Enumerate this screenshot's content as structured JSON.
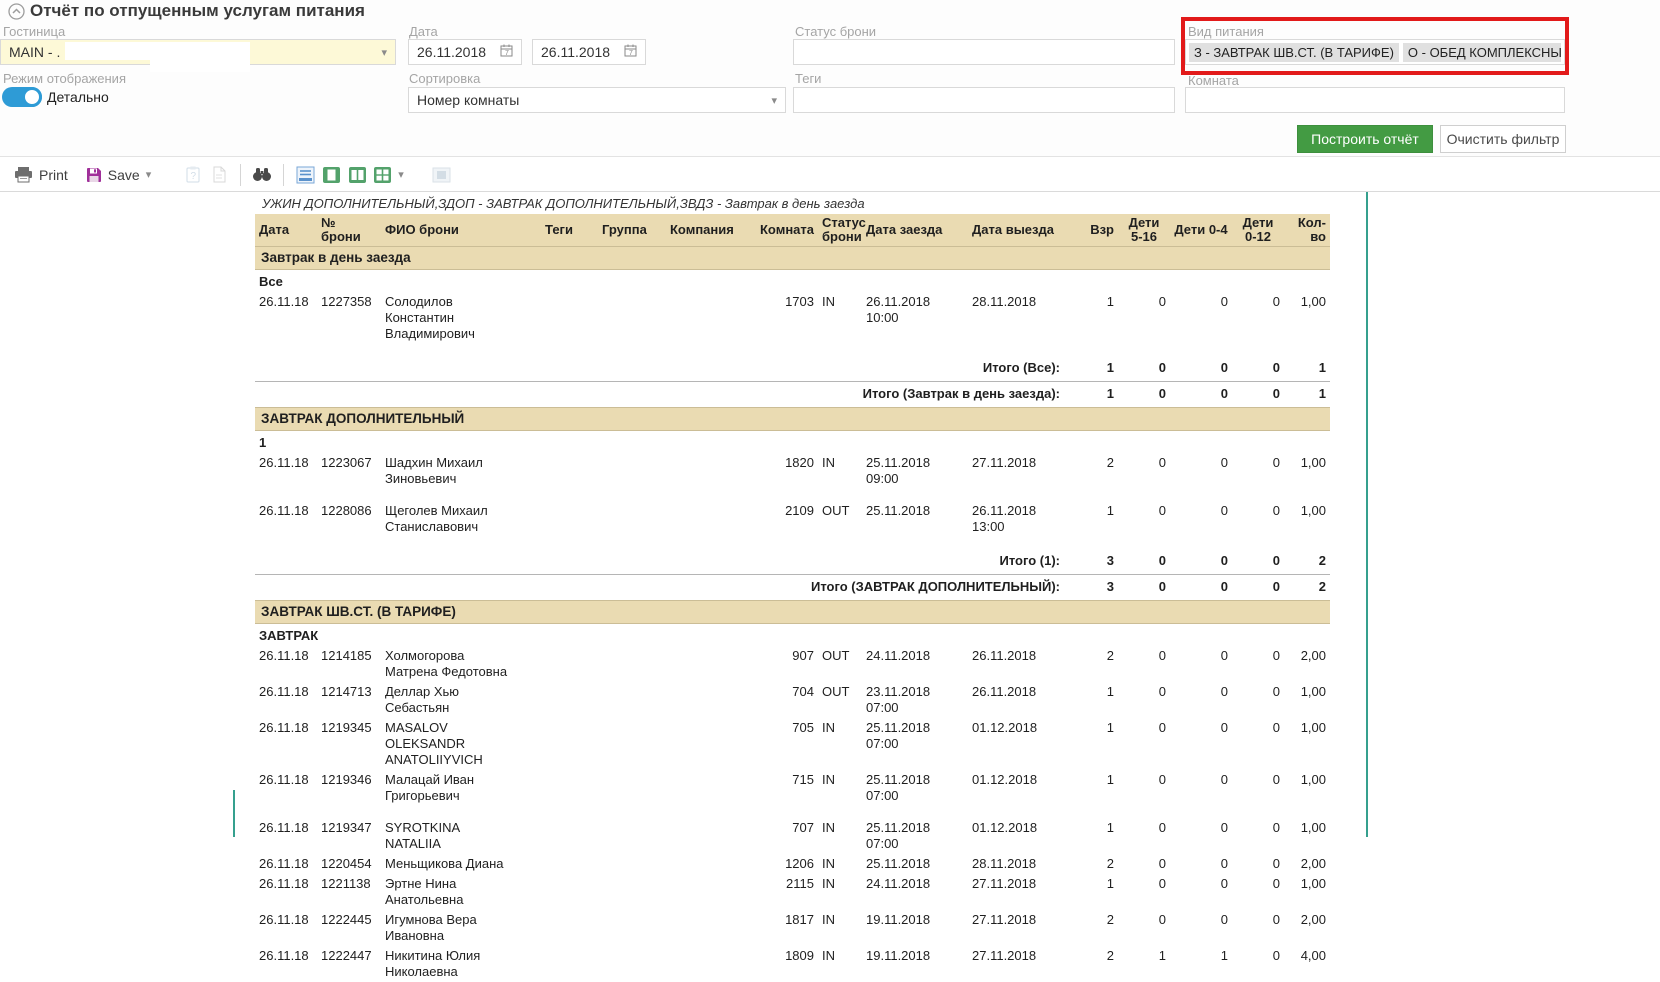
{
  "header": {
    "title": "Отчёт по отпущенным услугам питания"
  },
  "filters": {
    "hotel": {
      "label": "Гостиница",
      "value": "MAIN - ."
    },
    "date": {
      "label": "Дата",
      "from": "26.11.2018",
      "to": "26.11.2018"
    },
    "booking_status": {
      "label": "Статус брони",
      "value": ""
    },
    "meal_type": {
      "label": "Вид питания",
      "chips": [
        "З - ЗАВТРАК ШВ.СТ. (В ТАРИФЕ)",
        "О - ОБЕД КОМПЛЕКСНЫЙ (В"
      ]
    },
    "display_mode": {
      "label": "Режим отображения",
      "toggle_label": "Детально",
      "enabled": true
    },
    "sorting": {
      "label": "Сортировка",
      "value": "Номер комнаты"
    },
    "tags": {
      "label": "Теги",
      "value": ""
    },
    "room": {
      "label": "Комната",
      "value": ""
    },
    "build_button": "Построить отчёт",
    "clear_button": "Очистить фильтр"
  },
  "toolbar": {
    "print_label": "Print",
    "save_label": "Save",
    "icons": [
      "printer-icon",
      "save-icon",
      "clipboard-question-icon",
      "export-document-icon",
      "find-icon",
      "text-view-icon",
      "single-page-view-icon",
      "facing-pages-view-icon",
      "multi-page-view-icon",
      "page-width-view-icon"
    ]
  },
  "report": {
    "legend": "УЖИН ДОПОЛНИТЕЛЬНЫЙ,ЗДОП - ЗАВТРАК ДОПОЛНИТЕЛЬНЫЙ,ЗВДЗ - Завтрак в день заезда",
    "columns": [
      "Дата",
      "№ брони",
      "ФИО брони",
      "Теги",
      "Группа",
      "Компания",
      "Комната",
      "Статус брони",
      "Дата заезда",
      "Дата выезда",
      "Взр",
      "Дети 5-16",
      "Дети 0-4",
      "Дети 0-12",
      "Кол-во"
    ],
    "sections": [
      {
        "title": "Завтрак в день заезда",
        "groups": [
          {
            "name": "Все",
            "rows": [
              {
                "cells": [
                  "26.11.18",
                  "1227358",
                  "Солодилов Константин Владимирович",
                  "",
                  "",
                  "",
                  "1703",
                  "IN",
                  "26.11.2018 10:00",
                  "28.11.2018",
                  "1",
                  "0",
                  "0",
                  "0",
                  "1,00"
                ],
                "gap_after": true
              }
            ],
            "total_label": "Итого (Все):",
            "total": [
              "1",
              "0",
              "0",
              "0",
              "1"
            ]
          }
        ],
        "total_label": "Итого (Завтрак в день заезда):",
        "total": [
          "1",
          "0",
          "0",
          "0",
          "1"
        ]
      },
      {
        "title": "ЗАВТРАК ДОПОЛНИТЕЛЬНЫЙ",
        "groups": [
          {
            "name": "1",
            "rows": [
              {
                "cells": [
                  "26.11.18",
                  "1223067",
                  "Шадхин Михаил Зиновьевич",
                  "",
                  "",
                  "",
                  "1820",
                  "IN",
                  "25.11.2018 09:00",
                  "27.11.2018",
                  "2",
                  "0",
                  "0",
                  "0",
                  "1,00"
                ],
                "gap_after": true
              },
              {
                "cells": [
                  "26.11.18",
                  "1228086",
                  "Щеголев Михаил Станиславович",
                  "",
                  "",
                  "",
                  "2109",
                  "OUT",
                  "25.11.2018",
                  "26.11.2018 13:00",
                  "1",
                  "0",
                  "0",
                  "0",
                  "1,00"
                ],
                "gap_after": true
              }
            ],
            "total_label": "Итого (1):",
            "total": [
              "3",
              "0",
              "0",
              "0",
              "2"
            ]
          }
        ],
        "total_label": "Итого (ЗАВТРАК ДОПОЛНИТЕЛЬНЫЙ):",
        "total": [
          "3",
          "0",
          "0",
          "0",
          "2"
        ]
      },
      {
        "title": "ЗАВТРАК ШВ.СТ. (В ТАРИФЕ)",
        "groups": [
          {
            "name": "ЗАВТРАК",
            "rows": [
              {
                "cells": [
                  "26.11.18",
                  "1214185",
                  "Холмогорова Матрена Федотовна",
                  "",
                  "",
                  "",
                  "907",
                  "OUT",
                  "24.11.2018",
                  "26.11.2018",
                  "2",
                  "0",
                  "0",
                  "0",
                  "2,00"
                ]
              },
              {
                "cells": [
                  "26.11.18",
                  "1214713",
                  "Деллар Хью Себастьян",
                  "",
                  "",
                  "",
                  "704",
                  "OUT",
                  "23.11.2018 07:00",
                  "26.11.2018",
                  "1",
                  "0",
                  "0",
                  "0",
                  "1,00"
                ]
              },
              {
                "cells": [
                  "26.11.18",
                  "1219345",
                  "MASALOV OLEKSANDR ANATOLIIYVICH",
                  "",
                  "",
                  "",
                  "705",
                  "IN",
                  "25.11.2018 07:00",
                  "01.12.2018",
                  "1",
                  "0",
                  "0",
                  "0",
                  "1,00"
                ]
              },
              {
                "cells": [
                  "26.11.18",
                  "1219346",
                  "Малацай Иван Григорьевич",
                  "",
                  "",
                  "",
                  "715",
                  "IN",
                  "25.11.2018 07:00",
                  "01.12.2018",
                  "1",
                  "0",
                  "0",
                  "0",
                  "1,00"
                ],
                "gap_after": true
              },
              {
                "cells": [
                  "26.11.18",
                  "1219347",
                  "SYROTKINA NATALIIA",
                  "",
                  "",
                  "",
                  "707",
                  "IN",
                  "25.11.2018 07:00",
                  "01.12.2018",
                  "1",
                  "0",
                  "0",
                  "0",
                  "1,00"
                ]
              },
              {
                "cells": [
                  "26.11.18",
                  "1220454",
                  "Меньщикова Диана",
                  "",
                  "",
                  "",
                  "1206",
                  "IN",
                  "25.11.2018",
                  "28.11.2018",
                  "2",
                  "0",
                  "0",
                  "0",
                  "2,00"
                ]
              },
              {
                "cells": [
                  "26.11.18",
                  "1221138",
                  "Эртне Нина Анатольевна",
                  "",
                  "",
                  "",
                  "2115",
                  "IN",
                  "24.11.2018",
                  "27.11.2018",
                  "1",
                  "0",
                  "0",
                  "0",
                  "1,00"
                ]
              },
              {
                "cells": [
                  "26.11.18",
                  "1222445",
                  "Игумнова Вера Ивановна",
                  "",
                  "",
                  "",
                  "1817",
                  "IN",
                  "19.11.2018",
                  "27.11.2018",
                  "2",
                  "0",
                  "0",
                  "0",
                  "2,00"
                ]
              },
              {
                "cells": [
                  "26.11.18",
                  "1222447",
                  "Никитина Юлия Николаевна",
                  "",
                  "",
                  "",
                  "1809",
                  "IN",
                  "19.11.2018",
                  "27.11.2018",
                  "2",
                  "1",
                  "1",
                  "0",
                  "4,00"
                ]
              }
            ]
          }
        ]
      }
    ]
  },
  "colors": {
    "accent_green": "#439b43",
    "toggle_blue": "#2e9bd6",
    "highlight_red": "#e21a1a",
    "band_tan": "#eadbb2",
    "page_border_teal": "#35a08e",
    "save_purple": "#a0309a",
    "field_yellow": "#fdf9d7"
  }
}
